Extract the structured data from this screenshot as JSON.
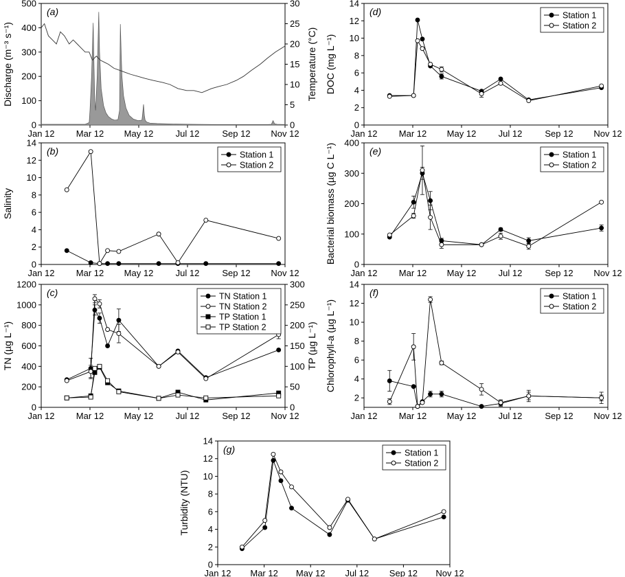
{
  "chart_data": [
    {
      "id": "a",
      "panel_label": "(a)",
      "type": "area",
      "ylabel": "Discharge (m⁻³ s⁻¹)",
      "y2label": "Temperature (°C)",
      "xlim": [
        "2012-01-01",
        "2012-11-01"
      ],
      "ylim": [
        0,
        500
      ],
      "y2lim": [
        0,
        30
      ],
      "xticks": [
        "Jan 12",
        "Mar 12",
        "May 12",
        "Jul 12",
        "Sep 12",
        "Nov 12"
      ],
      "yticks": [
        0,
        100,
        200,
        300,
        400,
        500
      ],
      "y2ticks": [
        0,
        5,
        10,
        15,
        20,
        25,
        30
      ],
      "series": [
        {
          "axis": "left",
          "style": "filled-area",
          "x": [
            "2012-01-01",
            "2012-02-25",
            "2012-03-01",
            "2012-03-02",
            "2012-03-04",
            "2012-03-06",
            "2012-03-07",
            "2012-03-08",
            "2012-03-09",
            "2012-03-11",
            "2012-03-13",
            "2012-03-14",
            "2012-03-16",
            "2012-03-19",
            "2012-03-22",
            "2012-03-25",
            "2012-03-29",
            "2012-04-02",
            "2012-04-06",
            "2012-04-08",
            "2012-04-09",
            "2012-04-10",
            "2012-04-11",
            "2012-04-13",
            "2012-04-16",
            "2012-04-20",
            "2012-04-25",
            "2012-05-01",
            "2012-05-06",
            "2012-05-07",
            "2012-05-08",
            "2012-05-09",
            "2012-05-10",
            "2012-05-12",
            "2012-05-16",
            "2012-05-25",
            "2012-06-15",
            "2012-07-10",
            "2012-08-10",
            "2012-09-10",
            "2012-10-10",
            "2012-10-15",
            "2012-10-17",
            "2012-10-19",
            "2012-10-22",
            "2012-11-01"
          ],
          "y": [
            3,
            3,
            10,
            60,
            200,
            420,
            250,
            100,
            60,
            200,
            465,
            300,
            150,
            80,
            50,
            35,
            25,
            20,
            22,
            60,
            415,
            300,
            200,
            120,
            70,
            40,
            25,
            18,
            20,
            50,
            85,
            40,
            20,
            12,
            8,
            6,
            4,
            3,
            2,
            2,
            2,
            3,
            18,
            5,
            3,
            2
          ]
        },
        {
          "axis": "right",
          "style": "line",
          "x": [
            "2012-01-01",
            "2012-01-05",
            "2012-01-10",
            "2012-01-15",
            "2012-01-20",
            "2012-01-25",
            "2012-01-30",
            "2012-02-05",
            "2012-02-10",
            "2012-02-15",
            "2012-02-20",
            "2012-02-25",
            "2012-03-01",
            "2012-03-05",
            "2012-03-10",
            "2012-03-15",
            "2012-03-20",
            "2012-03-25",
            "2012-04-01",
            "2012-04-08",
            "2012-04-15",
            "2012-04-22",
            "2012-05-01",
            "2012-05-10",
            "2012-05-20",
            "2012-06-01",
            "2012-06-10",
            "2012-06-20",
            "2012-07-01",
            "2012-07-10",
            "2012-07-20",
            "2012-08-01",
            "2012-08-10",
            "2012-08-20",
            "2012-09-01",
            "2012-09-10",
            "2012-09-20",
            "2012-10-01",
            "2012-10-10",
            "2012-10-20",
            "2012-11-01"
          ],
          "y": [
            24,
            25,
            22,
            21,
            20,
            23,
            22,
            20,
            21,
            20,
            19,
            18,
            18,
            16,
            17,
            16,
            15.5,
            15,
            14,
            13.5,
            13,
            12.5,
            12,
            11.5,
            11,
            10.5,
            10,
            9,
            8.5,
            8.5,
            8,
            9,
            9.5,
            10,
            11,
            12,
            13.5,
            15,
            16.5,
            18,
            19.5
          ]
        }
      ]
    },
    {
      "id": "b",
      "panel_label": "(b)",
      "type": "line",
      "ylabel": "Salinity",
      "xlim": [
        "2012-01-01",
        "2012-11-01"
      ],
      "ylim": [
        0,
        14
      ],
      "xticks": [
        "Jan 12",
        "Mar 12",
        "May 12",
        "Jul 12",
        "Sep 12",
        "Nov 12"
      ],
      "yticks": [
        0,
        2,
        4,
        6,
        8,
        10,
        12,
        14
      ],
      "series": [
        {
          "name": "Station 1",
          "marker": "filled-circle",
          "x": [
            "2012-02-02",
            "2012-03-03",
            "2012-03-14",
            "2012-03-24",
            "2012-04-07",
            "2012-05-27",
            "2012-06-20",
            "2012-07-25",
            "2012-10-24"
          ],
          "y": [
            1.6,
            0.2,
            0.1,
            0.1,
            0.1,
            0.1,
            0.1,
            0.1,
            0.1
          ]
        },
        {
          "name": "Station 2",
          "marker": "open-circle",
          "x": [
            "2012-02-02",
            "2012-03-03",
            "2012-03-14",
            "2012-03-24",
            "2012-04-07",
            "2012-05-27",
            "2012-06-20",
            "2012-07-25",
            "2012-10-24"
          ],
          "y": [
            8.6,
            13.0,
            0.1,
            1.6,
            1.5,
            3.5,
            0.2,
            5.1,
            3.0
          ]
        }
      ],
      "legend": "top-right"
    },
    {
      "id": "c",
      "panel_label": "(c)",
      "type": "line",
      "ylabel": "TN (µg L⁻¹)",
      "y2label": "TP (µg L⁻¹)",
      "xlim": [
        "2012-01-01",
        "2012-11-01"
      ],
      "ylim": [
        0,
        1200
      ],
      "y2lim": [
        0,
        300
      ],
      "xticks": [
        "Jan 12",
        "Mar 12",
        "May 12",
        "Jul 12",
        "Sep 12",
        "Nov 12"
      ],
      "yticks": [
        0,
        200,
        400,
        600,
        800,
        1000,
        1200
      ],
      "y2ticks": [
        0,
        50,
        100,
        150,
        200,
        250,
        300
      ],
      "series": [
        {
          "name": "TN Station 1",
          "marker": "filled-circle",
          "axis": "left",
          "x": [
            "2012-02-02",
            "2012-03-03",
            "2012-03-08",
            "2012-03-14",
            "2012-03-24",
            "2012-04-07",
            "2012-05-27",
            "2012-06-20",
            "2012-07-25",
            "2012-10-24"
          ],
          "y": [
            270,
            380,
            950,
            870,
            600,
            850,
            400,
            550,
            290,
            560
          ],
          "err": [
            0,
            100,
            50,
            50,
            0,
            110,
            0,
            0,
            0,
            0
          ]
        },
        {
          "name": "TN Station 2",
          "marker": "open-circle",
          "axis": "left",
          "x": [
            "2012-02-02",
            "2012-03-03",
            "2012-03-08",
            "2012-03-14",
            "2012-03-24",
            "2012-04-07",
            "2012-05-27",
            "2012-06-20",
            "2012-07-25",
            "2012-10-24"
          ],
          "y": [
            260,
            350,
            1060,
            1010,
            760,
            720,
            400,
            540,
            280,
            710
          ],
          "err": [
            0,
            60,
            40,
            40,
            0,
            90,
            0,
            0,
            0,
            40
          ]
        },
        {
          "name": "TP Station 1",
          "marker": "filled-square",
          "axis": "right",
          "x": [
            "2012-02-02",
            "2012-03-03",
            "2012-03-08",
            "2012-03-14",
            "2012-03-24",
            "2012-04-07",
            "2012-05-27",
            "2012-06-20",
            "2012-07-25",
            "2012-10-24"
          ],
          "y": [
            23,
            28,
            85,
            98,
            60,
            40,
            22,
            37,
            18,
            35
          ]
        },
        {
          "name": "TP Station 2",
          "marker": "open-square",
          "axis": "right",
          "x": [
            "2012-02-02",
            "2012-03-03",
            "2012-03-08",
            "2012-03-14",
            "2012-03-24",
            "2012-04-07",
            "2012-05-27",
            "2012-06-20",
            "2012-07-25",
            "2012-10-24"
          ],
          "y": [
            23,
            25,
            95,
            100,
            65,
            38,
            22,
            30,
            23,
            28
          ]
        }
      ],
      "legend": "top-right"
    },
    {
      "id": "d",
      "panel_label": "(d)",
      "type": "line",
      "ylabel": "DOC (mg L⁻¹)",
      "xlim": [
        "2012-01-01",
        "2012-11-01"
      ],
      "ylim": [
        0,
        14
      ],
      "xticks": [
        "Jan 12",
        "Mar 12",
        "May 12",
        "Jul 12",
        "Sep 12",
        "Nov 12"
      ],
      "yticks": [
        0,
        2,
        4,
        6,
        8,
        10,
        12,
        14
      ],
      "series": [
        {
          "name": "Station 1",
          "marker": "filled-circle",
          "x": [
            "2012-02-02",
            "2012-03-03",
            "2012-03-08",
            "2012-03-14",
            "2012-03-24",
            "2012-04-07",
            "2012-05-27",
            "2012-06-20",
            "2012-07-25",
            "2012-10-24"
          ],
          "y": [
            3.4,
            3.4,
            12.1,
            9.9,
            6.8,
            5.6,
            3.9,
            5.3,
            2.9,
            4.3
          ],
          "err": [
            0,
            0,
            0,
            0,
            0,
            0.3,
            0,
            0,
            0,
            0
          ]
        },
        {
          "name": "Station 2",
          "marker": "open-circle",
          "x": [
            "2012-02-02",
            "2012-03-03",
            "2012-03-08",
            "2012-03-14",
            "2012-03-24",
            "2012-04-07",
            "2012-05-27",
            "2012-06-20",
            "2012-07-25",
            "2012-10-24"
          ],
          "y": [
            3.3,
            3.4,
            9.7,
            8.8,
            7.0,
            6.4,
            3.6,
            4.8,
            2.8,
            4.5
          ],
          "err": [
            0,
            0,
            0,
            0,
            0,
            0.3,
            0.4,
            0,
            0,
            0
          ]
        }
      ],
      "legend": "top-right"
    },
    {
      "id": "e",
      "panel_label": "(e)",
      "type": "line",
      "ylabel": "Bacterial biomass (µg C L⁻¹)",
      "xlim": [
        "2012-01-01",
        "2012-11-01"
      ],
      "ylim": [
        0,
        400
      ],
      "xticks": [
        "Jan 12",
        "Mar 12",
        "May 12",
        "Jul 12",
        "Sep 12",
        "Nov 12"
      ],
      "yticks": [
        0,
        100,
        200,
        300,
        400
      ],
      "series": [
        {
          "name": "Station 1",
          "marker": "filled-circle",
          "x": [
            "2012-02-02",
            "2012-03-03",
            "2012-03-14",
            "2012-03-24",
            "2012-04-07",
            "2012-05-27",
            "2012-06-20",
            "2012-07-25",
            "2012-10-24"
          ],
          "y": [
            90,
            205,
            300,
            210,
            78,
            65,
            115,
            78,
            120
          ],
          "err": [
            0,
            20,
            20,
            30,
            8,
            0,
            5,
            10,
            10
          ]
        },
        {
          "name": "Station 2",
          "marker": "open-circle",
          "x": [
            "2012-02-02",
            "2012-03-03",
            "2012-03-14",
            "2012-03-24",
            "2012-04-07",
            "2012-05-27",
            "2012-06-20",
            "2012-07-25",
            "2012-10-24"
          ],
          "y": [
            97,
            160,
            310,
            155,
            65,
            65,
            93,
            60,
            205
          ],
          "err": [
            0,
            8,
            80,
            40,
            12,
            0,
            10,
            10,
            0
          ]
        }
      ],
      "legend": "top-right"
    },
    {
      "id": "f",
      "panel_label": "(f)",
      "type": "line",
      "ylabel": "Chlorophyll-a (µg L⁻¹)",
      "xlim": [
        "2012-01-01",
        "2012-11-01"
      ],
      "ylim": [
        1,
        14
      ],
      "xticks": [
        "Jan 12",
        "Mar 12",
        "May 12",
        "Jul 12",
        "Sep 12",
        "Nov 12"
      ],
      "yticks": [
        2,
        4,
        6,
        8,
        10,
        12,
        14
      ],
      "series": [
        {
          "name": "Station 1",
          "marker": "filled-circle",
          "x": [
            "2012-02-02",
            "2012-03-03",
            "2012-03-08",
            "2012-03-14",
            "2012-03-24",
            "2012-04-07",
            "2012-05-27",
            "2012-06-20",
            "2012-07-25",
            "2012-10-24"
          ],
          "y": [
            3.8,
            3.2,
            1.1,
            1.6,
            2.4,
            2.4,
            1.1,
            1.4,
            2.2,
            2.0
          ],
          "err": [
            1.1,
            0,
            0,
            0,
            0.3,
            0.3,
            0,
            0.3,
            0.4,
            0.3
          ]
        },
        {
          "name": "Station 2",
          "marker": "open-circle",
          "x": [
            "2012-02-02",
            "2012-03-03",
            "2012-03-08",
            "2012-03-14",
            "2012-03-24",
            "2012-04-07",
            "2012-05-27",
            "2012-06-20",
            "2012-07-25",
            "2012-10-24"
          ],
          "y": [
            1.6,
            7.4,
            1.1,
            1.5,
            12.4,
            5.7,
            2.9,
            1.5,
            2.2,
            2.0
          ],
          "err": [
            0.3,
            1.4,
            0,
            0,
            0.3,
            0.2,
            0.6,
            0.3,
            0.6,
            0.6
          ]
        }
      ],
      "legend": "top-right"
    },
    {
      "id": "g",
      "panel_label": "(g)",
      "type": "line",
      "ylabel": "Turbidity (NTU)",
      "xlim": [
        "2012-01-01",
        "2012-11-01"
      ],
      "ylim": [
        0,
        14
      ],
      "xticks": [
        "Jan 12",
        "Mar 12",
        "May 12",
        "Jul 12",
        "Sep 12",
        "Nov 12"
      ],
      "yticks": [
        0,
        2,
        4,
        6,
        8,
        10,
        12,
        14
      ],
      "series": [
        {
          "name": "Station 1",
          "marker": "filled-circle",
          "x": [
            "2012-02-02",
            "2012-03-03",
            "2012-03-14",
            "2012-03-24",
            "2012-04-07",
            "2012-05-27",
            "2012-06-20",
            "2012-07-25",
            "2012-10-24"
          ],
          "y": [
            1.8,
            4.2,
            11.8,
            9.5,
            6.4,
            3.4,
            7.3,
            2.9,
            5.4
          ]
        },
        {
          "name": "Station 2",
          "marker": "open-circle",
          "x": [
            "2012-02-02",
            "2012-03-03",
            "2012-03-14",
            "2012-03-24",
            "2012-04-07",
            "2012-05-27",
            "2012-06-20",
            "2012-07-25",
            "2012-10-24"
          ],
          "y": [
            2.0,
            5.0,
            12.5,
            10.5,
            8.8,
            4.2,
            7.4,
            2.9,
            6.0
          ]
        }
      ],
      "legend": "top-right"
    }
  ]
}
